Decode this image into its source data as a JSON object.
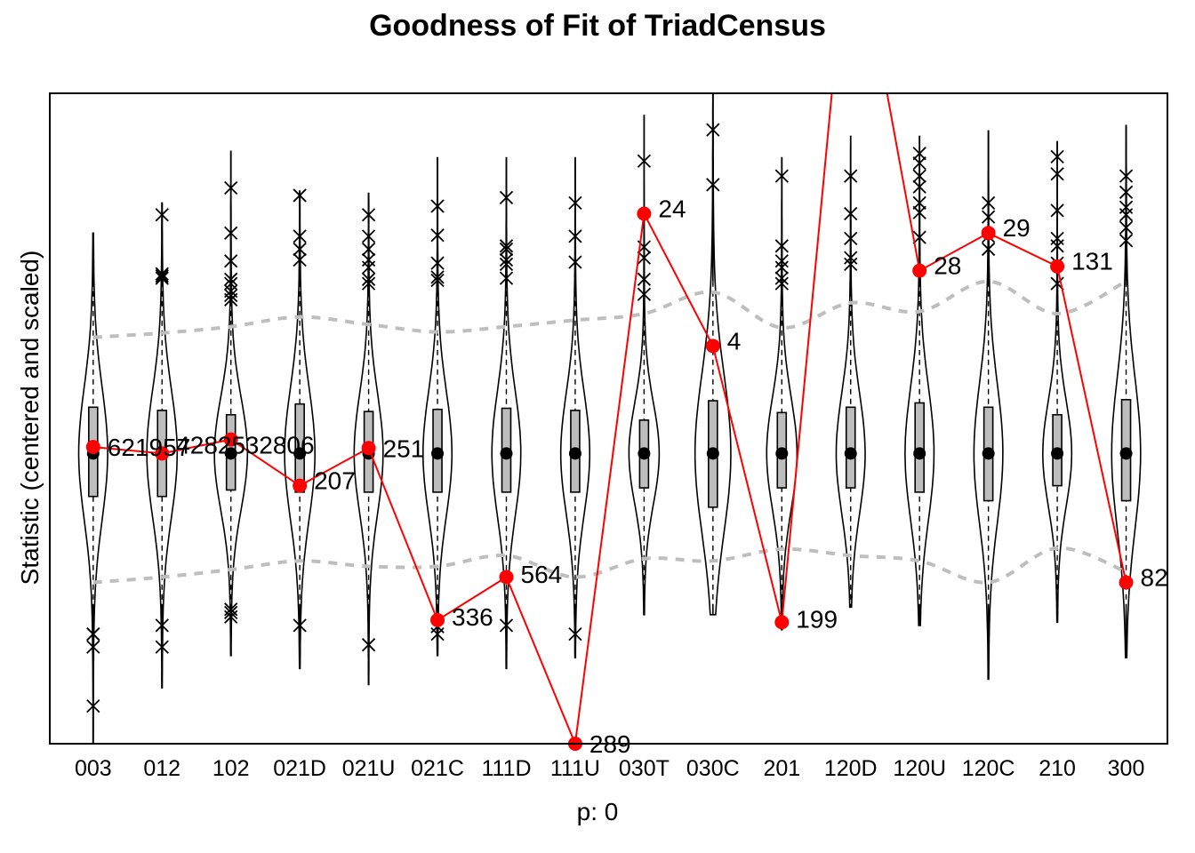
{
  "chart_data": {
    "type": "violin",
    "title": "Goodness of Fit of TriadCensus",
    "xlabel": "p: 0",
    "ylabel": "Statistic (centered and scaled)",
    "ylim": [
      -2.7,
      3.35
    ],
    "categories": [
      "003",
      "012",
      "102",
      "021D",
      "021U",
      "021C",
      "111D",
      "111U",
      "030T",
      "030C",
      "201",
      "120D",
      "120U",
      "120C",
      "210",
      "300"
    ],
    "observed": {
      "color": "#ff0000",
      "y": [
        0.06,
        0.0,
        0.13,
        -0.3,
        0.05,
        -1.55,
        -1.15,
        -2.7,
        2.23,
        1.0,
        -1.57,
        5.2,
        1.7,
        2.05,
        1.74,
        -1.2
      ],
      "labels": [
        "621957",
        "42825",
        "32806",
        "207",
        "251",
        "336",
        "564",
        "289",
        "24",
        "4",
        "199",
        "",
        "28",
        "29",
        "131",
        "82"
      ]
    },
    "bounds": {
      "upper": [
        1.08,
        1.12,
        1.18,
        1.27,
        1.2,
        1.13,
        1.18,
        1.24,
        1.3,
        1.5,
        1.17,
        1.4,
        1.32,
        1.6,
        1.3,
        1.6
      ],
      "lower": [
        -1.2,
        -1.15,
        -1.08,
        -1.0,
        -1.05,
        -1.05,
        -0.95,
        -1.15,
        -0.98,
        -1.0,
        -0.89,
        -0.95,
        -1.0,
        -1.2,
        -0.88,
        -1.1
      ]
    },
    "violins": {
      "median": [
        0,
        0,
        0,
        0,
        0,
        0,
        0,
        0,
        0,
        0,
        0,
        0,
        0,
        0,
        0,
        0
      ],
      "q1": [
        -0.4,
        -0.4,
        -0.34,
        -0.36,
        -0.36,
        -0.36,
        -0.36,
        -0.36,
        -0.32,
        -0.5,
        -0.32,
        -0.32,
        -0.36,
        -0.44,
        -0.3,
        -0.44
      ],
      "q3": [
        0.43,
        0.4,
        0.36,
        0.46,
        0.39,
        0.41,
        0.42,
        0.4,
        0.31,
        0.49,
        0.38,
        0.43,
        0.47,
        0.43,
        0.36,
        0.5
      ],
      "whisker_low": [
        -2.7,
        -2.18,
        -1.88,
        -2.0,
        -2.15,
        -1.88,
        -2.0,
        -1.9,
        -1.5,
        -1.5,
        -1.64,
        -1.43,
        -1.6,
        -2.1,
        -1.57,
        -1.9
      ],
      "whisker_high": [
        2.05,
        2.33,
        2.81,
        2.44,
        2.42,
        2.75,
        2.75,
        2.75,
        3.15,
        3.35,
        2.75,
        2.95,
        2.95,
        3.0,
        2.9,
        3.05
      ],
      "width": [
        0.21,
        0.22,
        0.24,
        0.22,
        0.21,
        0.21,
        0.21,
        0.21,
        0.22,
        0.26,
        0.22,
        0.21,
        0.21,
        0.21,
        0.21,
        0.21
      ],
      "outliers": [
        [
          -1.68,
          -1.68,
          -1.8,
          -2.35
        ],
        [
          -1.6,
          -1.8,
          2.22,
          1.67,
          1.65,
          1.63
        ],
        [
          2.47,
          2.05,
          1.79,
          1.62,
          1.58,
          1.51,
          1.43,
          1.47,
          -1.45,
          -1.48,
          -1.52
        ],
        [
          2.4,
          2.02,
          1.9,
          1.8,
          -1.6
        ],
        [
          2.22,
          2.02,
          1.9,
          1.8,
          1.73,
          1.62,
          1.58,
          -1.78
        ],
        [
          2.3,
          2.03,
          1.77,
          1.64,
          1.61,
          -1.61,
          -1.68
        ],
        [
          2.38,
          1.93,
          1.9,
          1.8,
          1.76,
          1.63,
          -1.6
        ],
        [
          2.33,
          2.02,
          1.78,
          -1.68
        ],
        [
          2.72,
          1.92,
          1.82,
          1.62,
          1.48
        ],
        [
          3.01,
          2.5
        ],
        [
          2.58,
          1.93,
          1.79,
          1.73,
          1.63,
          1.58
        ],
        [
          2.58,
          2.23,
          2.0,
          1.82,
          1.76
        ],
        [
          2.79,
          2.7,
          2.58,
          2.48,
          2.33,
          2.24,
          2.01
        ],
        [
          2.33,
          2.2,
          2.02,
          1.9
        ],
        [
          2.76,
          2.6,
          2.26,
          2.0,
          1.93,
          1.77,
          1.58
        ],
        [
          2.58,
          2.43,
          2.29,
          2.22,
          2.1,
          1.98
        ]
      ]
    },
    "grid": false,
    "legend": "none"
  }
}
